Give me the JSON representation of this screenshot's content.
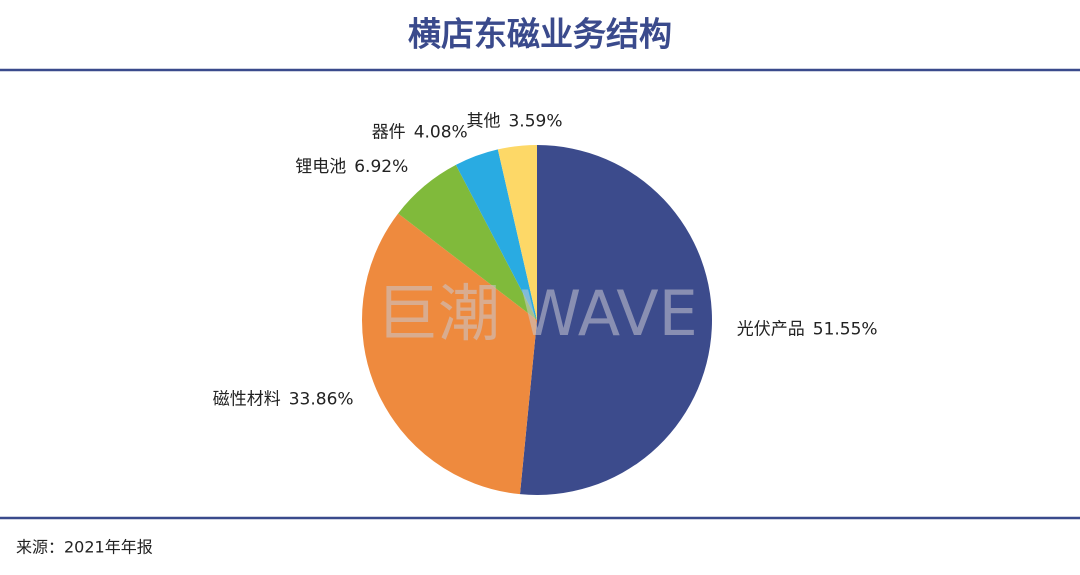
{
  "chart_data": {
    "type": "pie",
    "title": "横店东磁业务结构",
    "categories": [
      "光伏产品",
      "磁性材料",
      "锂电池",
      "器件",
      "其他"
    ],
    "values": [
      51.55,
      33.86,
      6.92,
      4.08,
      3.59
    ],
    "value_labels": [
      "51.55%",
      "33.86%",
      "6.92%",
      "4.08%",
      "3.59%"
    ],
    "colors": [
      "#3c4b8c",
      "#ee8a3e",
      "#80ba3b",
      "#29abe2",
      "#fdd867"
    ],
    "watermark": "巨潮 WAVE",
    "source": "来源：2021年年报"
  }
}
